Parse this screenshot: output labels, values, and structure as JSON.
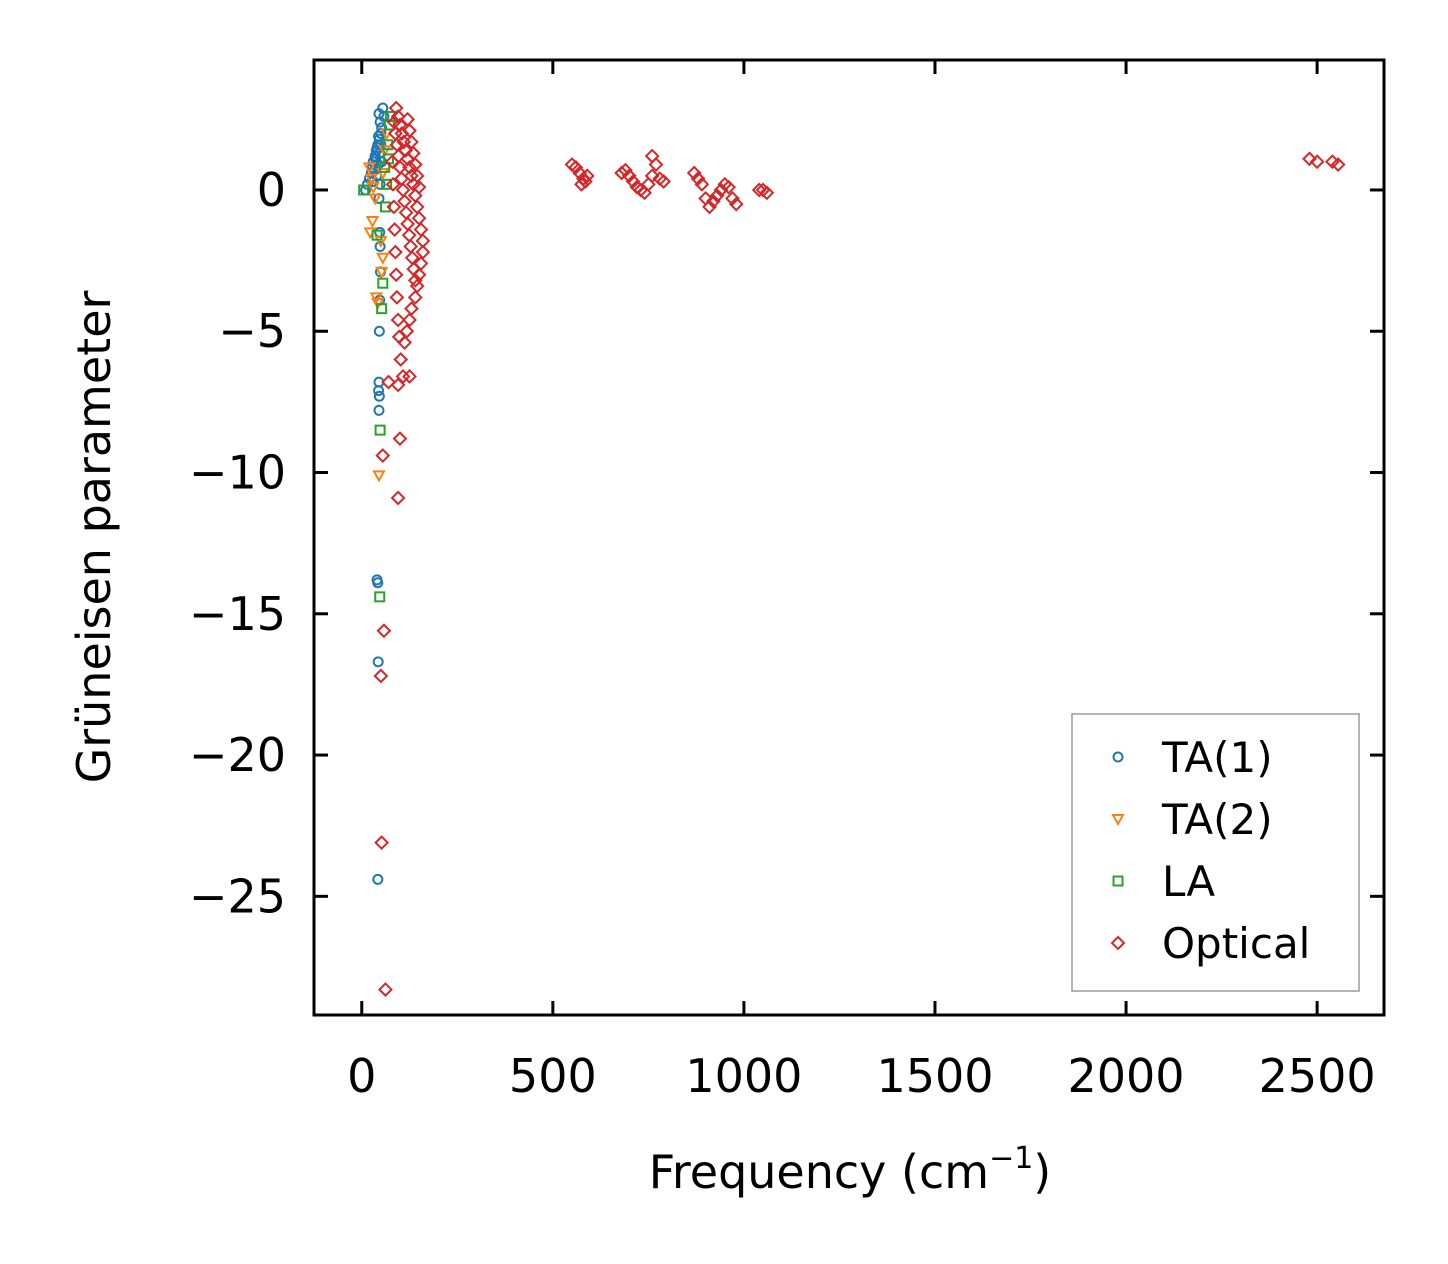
{
  "chart_data": {
    "type": "scatter",
    "title": "",
    "xlabel": "Frequency (cm",
    "xlabel_sup": "−1",
    "xlabel_end": ")",
    "ylabel": "Grüneisen parameter",
    "xlim": [
      -125,
      2675
    ],
    "ylim": [
      -29.2,
      4.6
    ],
    "xticks": [
      0,
      500,
      1000,
      1500,
      2000,
      2500
    ],
    "xtick_labels": [
      "0",
      "500",
      "1000",
      "1500",
      "2000",
      "2500"
    ],
    "yticks": [
      0,
      -5,
      -10,
      -15,
      -20,
      -25
    ],
    "ytick_labels": [
      "0",
      "−5",
      "−10",
      "−15",
      "−20",
      "−25"
    ],
    "grid": false,
    "legend_position": "lower-right",
    "series": [
      {
        "name": "TA(1)",
        "marker": "circle",
        "color": "#1f77b4",
        "points": [
          [
            45,
            2.7
          ],
          [
            48,
            2.4
          ],
          [
            52,
            2.2
          ],
          [
            50,
            2.0
          ],
          [
            46,
            1.8
          ],
          [
            42,
            1.6
          ],
          [
            38,
            1.4
          ],
          [
            35,
            1.2
          ],
          [
            30,
            1.0
          ],
          [
            28,
            0.8
          ],
          [
            25,
            0.6
          ],
          [
            20,
            0.4
          ],
          [
            15,
            0.2
          ],
          [
            10,
            0.0
          ],
          [
            44,
            1.9
          ],
          [
            40,
            1.5
          ],
          [
            36,
            1.1
          ],
          [
            33,
            0.7
          ],
          [
            30,
            0.3
          ],
          [
            55,
            2.9
          ],
          [
            58,
            2.6
          ],
          [
            47,
            1.3
          ],
          [
            43,
            0.9
          ],
          [
            39,
            0.5
          ],
          [
            50,
            1.6
          ],
          [
            52,
            1.0
          ],
          [
            48,
            0.2
          ],
          [
            45,
            -0.3
          ],
          [
            47,
            -1.5
          ],
          [
            48,
            -2.0
          ],
          [
            49,
            -2.9
          ],
          [
            47,
            -3.9
          ],
          [
            46,
            -5.0
          ],
          [
            45,
            -6.8
          ],
          [
            44,
            -7.1
          ],
          [
            46,
            -7.3
          ],
          [
            45,
            -7.8
          ],
          [
            40,
            -13.8
          ],
          [
            42,
            -13.9
          ],
          [
            43,
            -16.7
          ],
          [
            42,
            -24.4
          ]
        ]
      },
      {
        "name": "TA(2)",
        "marker": "triangle-down",
        "color": "#ff7f0e",
        "points": [
          [
            20,
            0.8
          ],
          [
            25,
            0.4
          ],
          [
            30,
            0.1
          ],
          [
            35,
            -0.3
          ],
          [
            28,
            -1.1
          ],
          [
            22,
            -1.5
          ],
          [
            38,
            -3.8
          ],
          [
            42,
            -4.0
          ],
          [
            50,
            -1.8
          ],
          [
            55,
            -2.4
          ],
          [
            52,
            -2.9
          ],
          [
            45,
            -10.1
          ],
          [
            60,
            1.4
          ],
          [
            65,
            2.0
          ],
          [
            55,
            0.6
          ]
        ]
      },
      {
        "name": "LA",
        "marker": "square",
        "color": "#2ca02c",
        "points": [
          [
            5,
            0.0
          ],
          [
            40,
            -1.6
          ],
          [
            55,
            -3.3
          ],
          [
            52,
            -4.2
          ],
          [
            48,
            -8.5
          ],
          [
            47,
            -14.4
          ],
          [
            60,
            0.8
          ],
          [
            68,
            1.6
          ],
          [
            72,
            2.3
          ],
          [
            75,
            2.6
          ],
          [
            70,
            1.1
          ],
          [
            65,
            0.2
          ],
          [
            62,
            -0.6
          ]
        ]
      },
      {
        "name": "Optical",
        "marker": "diamond",
        "color": "#d62728",
        "points": [
          [
            90,
            2.9
          ],
          [
            95,
            2.6
          ],
          [
            100,
            2.3
          ],
          [
            105,
            2.0
          ],
          [
            110,
            1.7
          ],
          [
            115,
            1.4
          ],
          [
            120,
            1.1
          ],
          [
            125,
            0.8
          ],
          [
            130,
            0.5
          ],
          [
            135,
            0.2
          ],
          [
            140,
            -0.2
          ],
          [
            145,
            -0.6
          ],
          [
            150,
            -1.0
          ],
          [
            155,
            -1.4
          ],
          [
            160,
            -1.8
          ],
          [
            160,
            -2.2
          ],
          [
            155,
            -2.6
          ],
          [
            150,
            -3.0
          ],
          [
            145,
            -3.4
          ],
          [
            140,
            -3.8
          ],
          [
            130,
            -4.2
          ],
          [
            125,
            -4.6
          ],
          [
            118,
            -5.0
          ],
          [
            112,
            -5.4
          ],
          [
            85,
            2.4
          ],
          [
            88,
            2.0
          ],
          [
            92,
            1.6
          ],
          [
            96,
            1.2
          ],
          [
            100,
            0.8
          ],
          [
            104,
            0.4
          ],
          [
            108,
            0.0
          ],
          [
            112,
            -0.4
          ],
          [
            116,
            -0.8
          ],
          [
            120,
            -1.2
          ],
          [
            124,
            -1.6
          ],
          [
            128,
            -2.0
          ],
          [
            132,
            -2.4
          ],
          [
            136,
            -2.8
          ],
          [
            140,
            -3.2
          ],
          [
            120,
            2.5
          ],
          [
            125,
            2.1
          ],
          [
            130,
            1.7
          ],
          [
            135,
            1.3
          ],
          [
            140,
            0.9
          ],
          [
            145,
            0.5
          ],
          [
            150,
            0.1
          ],
          [
            80,
            1.0
          ],
          [
            82,
            0.2
          ],
          [
            84,
            -0.6
          ],
          [
            86,
            -1.4
          ],
          [
            88,
            -2.2
          ],
          [
            90,
            -3.0
          ],
          [
            92,
            -3.8
          ],
          [
            95,
            -4.6
          ],
          [
            98,
            -5.2
          ],
          [
            102,
            -6.0
          ],
          [
            108,
            -6.6
          ],
          [
            125,
            -6.6
          ],
          [
            95,
            -6.9
          ],
          [
            70,
            -6.8
          ],
          [
            100,
            -8.8
          ],
          [
            55,
            -9.4
          ],
          [
            95,
            -10.9
          ],
          [
            58,
            -15.6
          ],
          [
            50,
            -17.2
          ],
          [
            52,
            -23.1
          ],
          [
            62,
            -28.3
          ],
          [
            560,
            0.8
          ],
          [
            570,
            0.6
          ],
          [
            580,
            0.4
          ],
          [
            590,
            0.5
          ],
          [
            550,
            0.9
          ],
          [
            575,
            0.2
          ],
          [
            585,
            0.3
          ],
          [
            690,
            0.7
          ],
          [
            700,
            0.5
          ],
          [
            710,
            0.3
          ],
          [
            720,
            0.1
          ],
          [
            730,
            0.0
          ],
          [
            740,
            -0.1
          ],
          [
            750,
            0.2
          ],
          [
            760,
            0.5
          ],
          [
            770,
            0.9
          ],
          [
            760,
            1.2
          ],
          [
            780,
            0.4
          ],
          [
            790,
            0.3
          ],
          [
            680,
            0.6
          ],
          [
            870,
            0.6
          ],
          [
            880,
            0.4
          ],
          [
            890,
            0.2
          ],
          [
            900,
            -0.3
          ],
          [
            910,
            -0.6
          ],
          [
            920,
            -0.4
          ],
          [
            930,
            -0.2
          ],
          [
            940,
            0.0
          ],
          [
            950,
            0.2
          ],
          [
            960,
            0.1
          ],
          [
            970,
            -0.3
          ],
          [
            980,
            -0.5
          ],
          [
            1040,
            0.0
          ],
          [
            1060,
            -0.1
          ],
          [
            1050,
            0.0
          ],
          [
            2480,
            1.1
          ],
          [
            2500,
            1.0
          ],
          [
            2540,
            1.0
          ],
          [
            2555,
            0.9
          ]
        ]
      }
    ]
  }
}
